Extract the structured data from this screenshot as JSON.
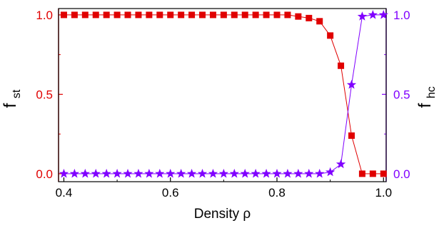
{
  "chart_data": {
    "type": "line",
    "xlabel": "Density ρ",
    "ylabel_left": {
      "main": "f",
      "sub": "st"
    },
    "ylabel_right": {
      "main": "f",
      "sub": "hc"
    },
    "xlim": [
      0.39,
      1.005
    ],
    "ylim": [
      -0.05,
      1.04
    ],
    "x_ticks": [
      0.4,
      0.6,
      0.8,
      1.0
    ],
    "x_tick_labels": [
      "0.4",
      "0.6",
      "0.8",
      "1.0"
    ],
    "y_ticks": [
      0.0,
      0.5,
      1.0
    ],
    "y_tick_labels": [
      "0.0",
      "0.5",
      "1.0"
    ],
    "grid": false,
    "colors": {
      "left": "#e00000",
      "right": "#8000ff"
    },
    "x": [
      0.4,
      0.42,
      0.44,
      0.46,
      0.48,
      0.5,
      0.52,
      0.54,
      0.56,
      0.58,
      0.6,
      0.62,
      0.64,
      0.66,
      0.68,
      0.7,
      0.72,
      0.74,
      0.76,
      0.78,
      0.8,
      0.82,
      0.84,
      0.86,
      0.88,
      0.9,
      0.92,
      0.94,
      0.96,
      0.98,
      1.0
    ],
    "series": [
      {
        "axis": "left",
        "marker": "square",
        "color": "#e00000",
        "values": [
          1,
          1,
          1,
          1,
          1,
          1,
          1,
          1,
          1,
          1,
          1,
          1,
          1,
          1,
          1,
          1,
          1,
          1,
          1,
          1,
          1,
          1,
          0.99,
          0.98,
          0.96,
          0.87,
          0.68,
          0.24,
          0.0,
          0.0,
          0.0
        ]
      },
      {
        "axis": "right",
        "marker": "star",
        "color": "#8000ff",
        "values": [
          0,
          0,
          0,
          0,
          0,
          0,
          0,
          0,
          0,
          0,
          0,
          0,
          0,
          0,
          0,
          0,
          0,
          0,
          0,
          0,
          0,
          0,
          0,
          0,
          0,
          0.01,
          0.06,
          0.56,
          0.99,
          1.0,
          1.0
        ]
      }
    ]
  }
}
